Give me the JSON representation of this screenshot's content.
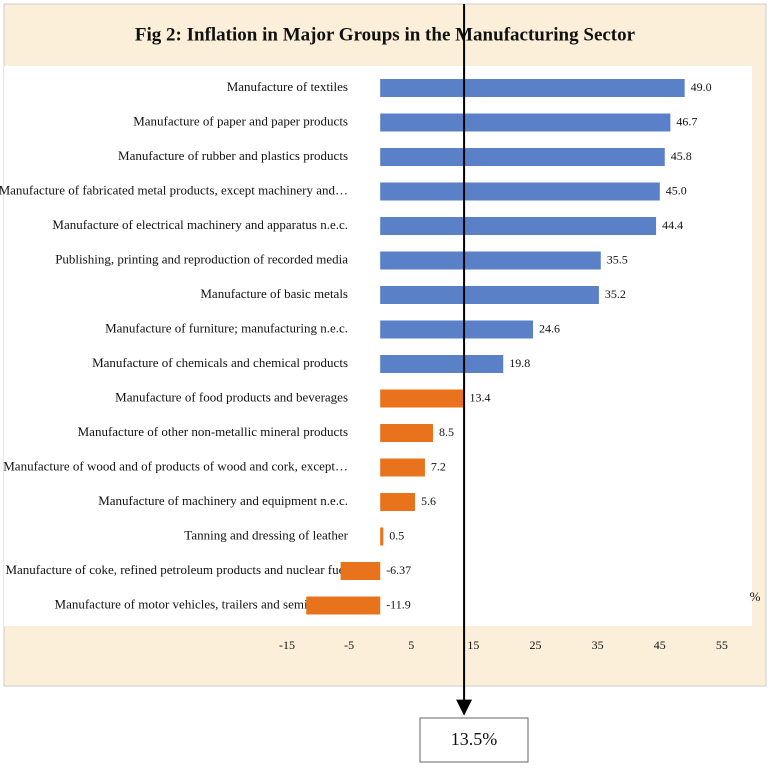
{
  "chart_data": {
    "type": "hbar",
    "title": "Fig 2: Inflation in Major Groups in the Manufacturing Sector",
    "x_label": "%",
    "categories": [
      "Manufacture of textiles",
      "Manufacture of paper and paper products",
      "Manufacture of rubber and plastics products",
      "Manufacture of fabricated metal products, except machinery and…",
      "Manufacture of electrical machinery and apparatus n.e.c.",
      "Publishing, printing and reproduction of recorded media",
      "Manufacture of basic metals",
      "Manufacture of furniture; manufacturing n.e.c.",
      "Manufacture of chemicals and chemical products",
      "Manufacture of food products and beverages",
      "Manufacture of other non-metallic mineral products",
      "Manufacture of wood and of products of wood and cork, except…",
      "Manufacture of machinery and equipment n.e.c.",
      "Tanning and dressing of leather",
      "Manufacture of coke, refined petroleum products and nuclear fuel",
      "Manufacture of motor vehicles, trailers and semi-trailers"
    ],
    "values": [
      49.0,
      46.7,
      45.8,
      45.0,
      44.4,
      35.5,
      35.2,
      24.6,
      19.8,
      13.4,
      8.5,
      7.2,
      5.6,
      0.5,
      -6.37,
      -11.9
    ],
    "value_labels": [
      "49.0",
      "46.7",
      "45.8",
      "45.0",
      "44.4",
      "35.5",
      "35.2",
      "24.6",
      "19.8",
      "13.4",
      "8.5",
      "7.2",
      "5.6",
      "0.5",
      "-6.37",
      "-11.9"
    ],
    "colors": [
      "#5a80c8",
      "#5a80c8",
      "#5a80c8",
      "#5a80c8",
      "#5a80c8",
      "#5a80c8",
      "#5a80c8",
      "#5a80c8",
      "#5a80c8",
      "#e8731c",
      "#e8731c",
      "#e8731c",
      "#e8731c",
      "#e8731c",
      "#e8731c",
      "#e8731c"
    ],
    "xlim": [
      -15,
      60
    ],
    "xticks": [
      -15,
      -5,
      5,
      15,
      25,
      35,
      45,
      55
    ],
    "reference_line": {
      "value": 13.5,
      "label": "13.5%"
    }
  }
}
